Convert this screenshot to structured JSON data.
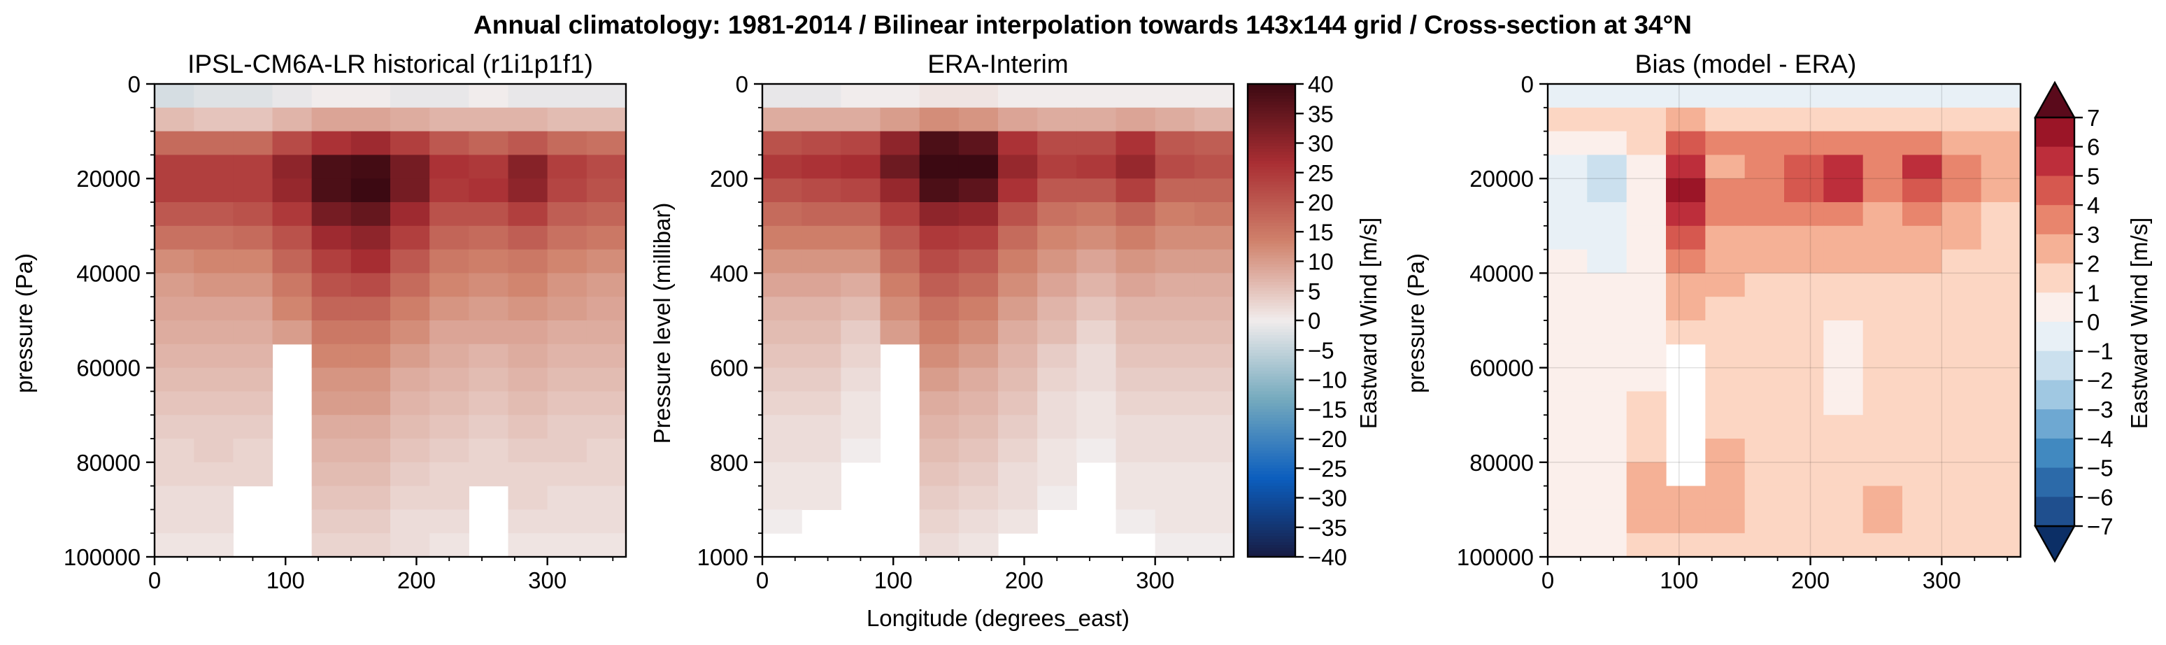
{
  "figure": {
    "suptitle": "Annual climatology: 1981-2014 / Bilinear interpolation towards 143x144 grid / Cross-section at 34°N"
  },
  "chart_data": [
    {
      "type": "heatmap",
      "title": "IPSL-CM6A-LR historical (r1i1p1f1)",
      "xlabel": "",
      "ylabel": "pressure (Pa)",
      "xlim": [
        0,
        360
      ],
      "ylim": [
        100000,
        0
      ],
      "x_ticks": [
        0,
        100,
        200,
        300
      ],
      "y_ticks": [
        0,
        20000,
        40000,
        60000,
        80000,
        100000
      ],
      "y_tick_labels": [
        "0",
        "20000",
        "40000",
        "60000",
        "80000",
        "100000"
      ],
      "colormap": "balance",
      "x_centers": [
        15,
        45,
        75,
        105,
        135,
        165,
        195,
        225,
        255,
        285,
        315,
        345
      ],
      "y_levels": [
        2500,
        7500,
        12500,
        17500,
        22500,
        27500,
        32500,
        37500,
        42500,
        47500,
        52500,
        57500,
        62500,
        67500,
        72500,
        77500,
        82500,
        87500,
        92500,
        97500
      ],
      "z_units": "m/s",
      "z": [
        [
          -3,
          -2,
          -2,
          -1,
          0,
          0,
          -1,
          -1,
          0,
          -1,
          -1,
          -1
        ],
        [
          6,
          5,
          5,
          7,
          9,
          9,
          8,
          7,
          7,
          7,
          6,
          6
        ],
        [
          17,
          17,
          17,
          22,
          26,
          28,
          24,
          20,
          18,
          20,
          17,
          16
        ],
        [
          24,
          24,
          24,
          30,
          38,
          39,
          33,
          26,
          25,
          31,
          24,
          22
        ],
        [
          24,
          24,
          24,
          29,
          38,
          40,
          33,
          25,
          26,
          30,
          23,
          21
        ],
        [
          20,
          20,
          21,
          25,
          33,
          35,
          28,
          21,
          21,
          24,
          19,
          18
        ],
        [
          16,
          16,
          17,
          21,
          28,
          30,
          24,
          18,
          17,
          19,
          16,
          15
        ],
        [
          12,
          13,
          13,
          18,
          24,
          27,
          20,
          15,
          14,
          15,
          13,
          12
        ],
        [
          10,
          11,
          11,
          15,
          21,
          22,
          17,
          13,
          12,
          13,
          11,
          10
        ],
        [
          9,
          9,
          9,
          13,
          18,
          18,
          14,
          11,
          10,
          11,
          10,
          9
        ],
        [
          8,
          8,
          8,
          10,
          15,
          15,
          12,
          9,
          9,
          9,
          8,
          8
        ],
        [
          7,
          7,
          7,
          null,
          13,
          13,
          10,
          8,
          7,
          8,
          7,
          7
        ],
        [
          6,
          6,
          6,
          null,
          11,
          11,
          8,
          7,
          6,
          7,
          6,
          6
        ],
        [
          5,
          5,
          5,
          null,
          10,
          10,
          7,
          6,
          5,
          6,
          5,
          5
        ],
        [
          4,
          4,
          4,
          null,
          8,
          8,
          6,
          5,
          4,
          5,
          4,
          4
        ],
        [
          3,
          4,
          3,
          null,
          7,
          7,
          5,
          4,
          3,
          4,
          4,
          3
        ],
        [
          3,
          3,
          3,
          null,
          6,
          6,
          4,
          3,
          3,
          3,
          3,
          3
        ],
        [
          2,
          2,
          null,
          null,
          5,
          5,
          3,
          3,
          null,
          3,
          2,
          2
        ],
        [
          2,
          2,
          null,
          null,
          4,
          4,
          2,
          2,
          null,
          2,
          2,
          2
        ],
        [
          1,
          1,
          null,
          null,
          3,
          3,
          2,
          1,
          null,
          1,
          1,
          1
        ]
      ]
    },
    {
      "type": "heatmap",
      "title": "ERA-Interim",
      "xlabel": "Longitude (degrees_east)",
      "ylabel": "Pressure level (millibar)",
      "xlim": [
        0,
        360
      ],
      "ylim": [
        1000,
        0
      ],
      "x_ticks": [
        0,
        100,
        200,
        300
      ],
      "y_ticks": [
        0,
        200,
        400,
        600,
        800,
        1000
      ],
      "y_tick_labels": [
        "0",
        "200",
        "400",
        "600",
        "800",
        "1000"
      ],
      "colormap": "balance",
      "x_centers": [
        15,
        45,
        75,
        105,
        135,
        165,
        195,
        225,
        255,
        285,
        315,
        345
      ],
      "y_levels": [
        25,
        75,
        125,
        175,
        225,
        275,
        325,
        375,
        425,
        475,
        525,
        575,
        625,
        675,
        725,
        775,
        825,
        875,
        925,
        975
      ],
      "z_units": "m/s",
      "z": [
        [
          -1,
          -1,
          0,
          0,
          1,
          1,
          0,
          0,
          0,
          0,
          0,
          0
        ],
        [
          8,
          8,
          8,
          10,
          12,
          11,
          9,
          8,
          8,
          9,
          8,
          7
        ],
        [
          21,
          22,
          23,
          30,
          38,
          36,
          26,
          22,
          22,
          26,
          20,
          19
        ],
        [
          25,
          26,
          27,
          34,
          42,
          40,
          29,
          24,
          25,
          29,
          22,
          21
        ],
        [
          21,
          22,
          23,
          29,
          38,
          36,
          26,
          20,
          20,
          24,
          18,
          18
        ],
        [
          17,
          18,
          18,
          24,
          30,
          29,
          21,
          16,
          15,
          18,
          14,
          15
        ],
        [
          14,
          14,
          14,
          20,
          25,
          24,
          17,
          13,
          12,
          14,
          12,
          12
        ],
        [
          11,
          11,
          11,
          17,
          22,
          20,
          14,
          11,
          9,
          11,
          10,
          10
        ],
        [
          9,
          9,
          8,
          14,
          19,
          17,
          12,
          9,
          7,
          9,
          8,
          8
        ],
        [
          7,
          7,
          6,
          12,
          16,
          14,
          10,
          7,
          5,
          7,
          7,
          7
        ],
        [
          6,
          6,
          4,
          10,
          14,
          12,
          8,
          6,
          3,
          6,
          6,
          6
        ],
        [
          5,
          5,
          3,
          null,
          12,
          10,
          7,
          4,
          2,
          5,
          5,
          5
        ],
        [
          4,
          4,
          2,
          null,
          10,
          8,
          6,
          3,
          2,
          4,
          4,
          4
        ],
        [
          3,
          3,
          1,
          null,
          8,
          7,
          5,
          2,
          1,
          3,
          3,
          3
        ],
        [
          2,
          2,
          1,
          null,
          7,
          6,
          4,
          2,
          1,
          2,
          2,
          2
        ],
        [
          2,
          2,
          0,
          null,
          6,
          5,
          3,
          1,
          0,
          2,
          2,
          2
        ],
        [
          1,
          1,
          null,
          null,
          5,
          4,
          2,
          1,
          null,
          1,
          1,
          1
        ],
        [
          1,
          1,
          null,
          null,
          4,
          3,
          2,
          0,
          null,
          1,
          1,
          1
        ],
        [
          0,
          null,
          null,
          null,
          3,
          2,
          1,
          null,
          null,
          0,
          1,
          1
        ],
        [
          null,
          null,
          null,
          null,
          2,
          1,
          null,
          null,
          null,
          null,
          0,
          0
        ]
      ]
    },
    {
      "type": "heatmap",
      "title": "Bias (model - ERA)",
      "xlabel": "",
      "ylabel": "pressure (Pa)",
      "xlim": [
        0,
        360
      ],
      "ylim": [
        100000,
        0
      ],
      "x_ticks": [
        0,
        100,
        200,
        300
      ],
      "y_ticks": [
        0,
        20000,
        40000,
        60000,
        80000,
        100000
      ],
      "y_tick_labels": [
        "0",
        "20000",
        "40000",
        "60000",
        "80000",
        "100000"
      ],
      "grid": true,
      "colormap": "RdBu_r discrete",
      "x_centers": [
        15,
        45,
        75,
        105,
        135,
        165,
        195,
        225,
        255,
        285,
        315,
        345
      ],
      "y_levels": [
        2500,
        7500,
        12500,
        17500,
        22500,
        27500,
        32500,
        37500,
        42500,
        47500,
        52500,
        57500,
        62500,
        67500,
        72500,
        77500,
        82500,
        87500,
        92500,
        97500
      ],
      "z_units": "m/s",
      "z": [
        [
          -1,
          -1,
          -1,
          -1,
          -1,
          -1,
          -1,
          -1,
          -1,
          -1,
          -1,
          -1
        ],
        [
          1,
          1,
          1,
          2,
          1,
          1,
          1,
          1,
          1,
          1,
          1,
          1
        ],
        [
          0,
          0,
          1,
          4,
          3,
          3,
          3,
          3,
          3,
          3,
          2,
          2
        ],
        [
          -1,
          -2,
          0,
          5,
          2,
          3,
          4,
          5,
          3,
          5,
          3,
          2
        ],
        [
          -1,
          -2,
          0,
          6,
          3,
          3,
          4,
          5,
          3,
          4,
          3,
          2
        ],
        [
          -1,
          -1,
          0,
          5,
          3,
          3,
          3,
          3,
          2,
          3,
          2,
          1
        ],
        [
          -1,
          -1,
          0,
          4,
          2,
          2,
          2,
          2,
          2,
          2,
          2,
          1
        ],
        [
          0,
          -1,
          0,
          3,
          2,
          2,
          2,
          2,
          2,
          2,
          1,
          1
        ],
        [
          0,
          0,
          0,
          2,
          2,
          1,
          1,
          1,
          1,
          1,
          1,
          1
        ],
        [
          0,
          0,
          0,
          2,
          1,
          1,
          1,
          1,
          1,
          1,
          1,
          1
        ],
        [
          0,
          0,
          0,
          1,
          1,
          1,
          1,
          0,
          1,
          1,
          1,
          1
        ],
        [
          0,
          0,
          0,
          null,
          1,
          1,
          1,
          0,
          1,
          1,
          1,
          1
        ],
        [
          0,
          0,
          0,
          null,
          1,
          1,
          1,
          0,
          1,
          1,
          1,
          1
        ],
        [
          0,
          0,
          1,
          null,
          1,
          1,
          1,
          0,
          1,
          1,
          1,
          1
        ],
        [
          0,
          0,
          1,
          null,
          1,
          1,
          1,
          1,
          1,
          1,
          1,
          1
        ],
        [
          0,
          0,
          1,
          null,
          2,
          1,
          1,
          1,
          1,
          1,
          1,
          1
        ],
        [
          0,
          0,
          2,
          null,
          2,
          1,
          1,
          1,
          1,
          1,
          1,
          1
        ],
        [
          0,
          0,
          2,
          2,
          2,
          1,
          1,
          1,
          2,
          1,
          1,
          1
        ],
        [
          0,
          0,
          2,
          2,
          2,
          1,
          1,
          1,
          2,
          1,
          1,
          1
        ],
        [
          0,
          0,
          1,
          1,
          1,
          1,
          1,
          1,
          1,
          1,
          1,
          1
        ]
      ]
    }
  ],
  "colorbars": [
    {
      "label": "Eastward Wind [m/s]",
      "min": -40,
      "max": 40,
      "ticks": [
        40,
        35,
        30,
        25,
        20,
        15,
        10,
        5,
        0,
        -5,
        -10,
        -15,
        -20,
        -25,
        -30,
        -35,
        -40
      ],
      "tick_labels": [
        "40",
        "35",
        "30",
        "25",
        "20",
        "15",
        "10",
        "5",
        "0",
        "−5",
        "−10",
        "−15",
        "−20",
        "−25",
        "−30",
        "−35",
        "−40"
      ]
    },
    {
      "label": "Eastward Wind [m/s]",
      "levels": [
        -7,
        -6,
        -5,
        -4,
        -3,
        -2,
        -1,
        0,
        1,
        2,
        3,
        4,
        5,
        6,
        7
      ],
      "tick_labels": [
        "7",
        "6",
        "5",
        "4",
        "3",
        "2",
        "1",
        "0",
        "−1",
        "−2",
        "−3",
        "−4",
        "−5",
        "−6",
        "−7"
      ],
      "extend": "both"
    }
  ],
  "colors": {
    "balance": [
      "#181c43",
      "#0c5ebe",
      "#75aabe",
      "#f1ecec",
      "#d0826c",
      "#a92e33",
      "#3c0912"
    ],
    "bias_levels": [
      "#1f4f8e",
      "#2c6aa9",
      "#4189c0",
      "#6ea8d2",
      "#a0c8e2",
      "#cbe0ee",
      "#e8f0f6",
      "#fbefeb",
      "#fcd6c3",
      "#f5b196",
      "#e8856d",
      "#d6584f",
      "#bd2e3b",
      "#9b1527",
      "#6a0a1d"
    ],
    "bias_under": "#0c2f66",
    "bias_over": "#5a0a1b"
  }
}
